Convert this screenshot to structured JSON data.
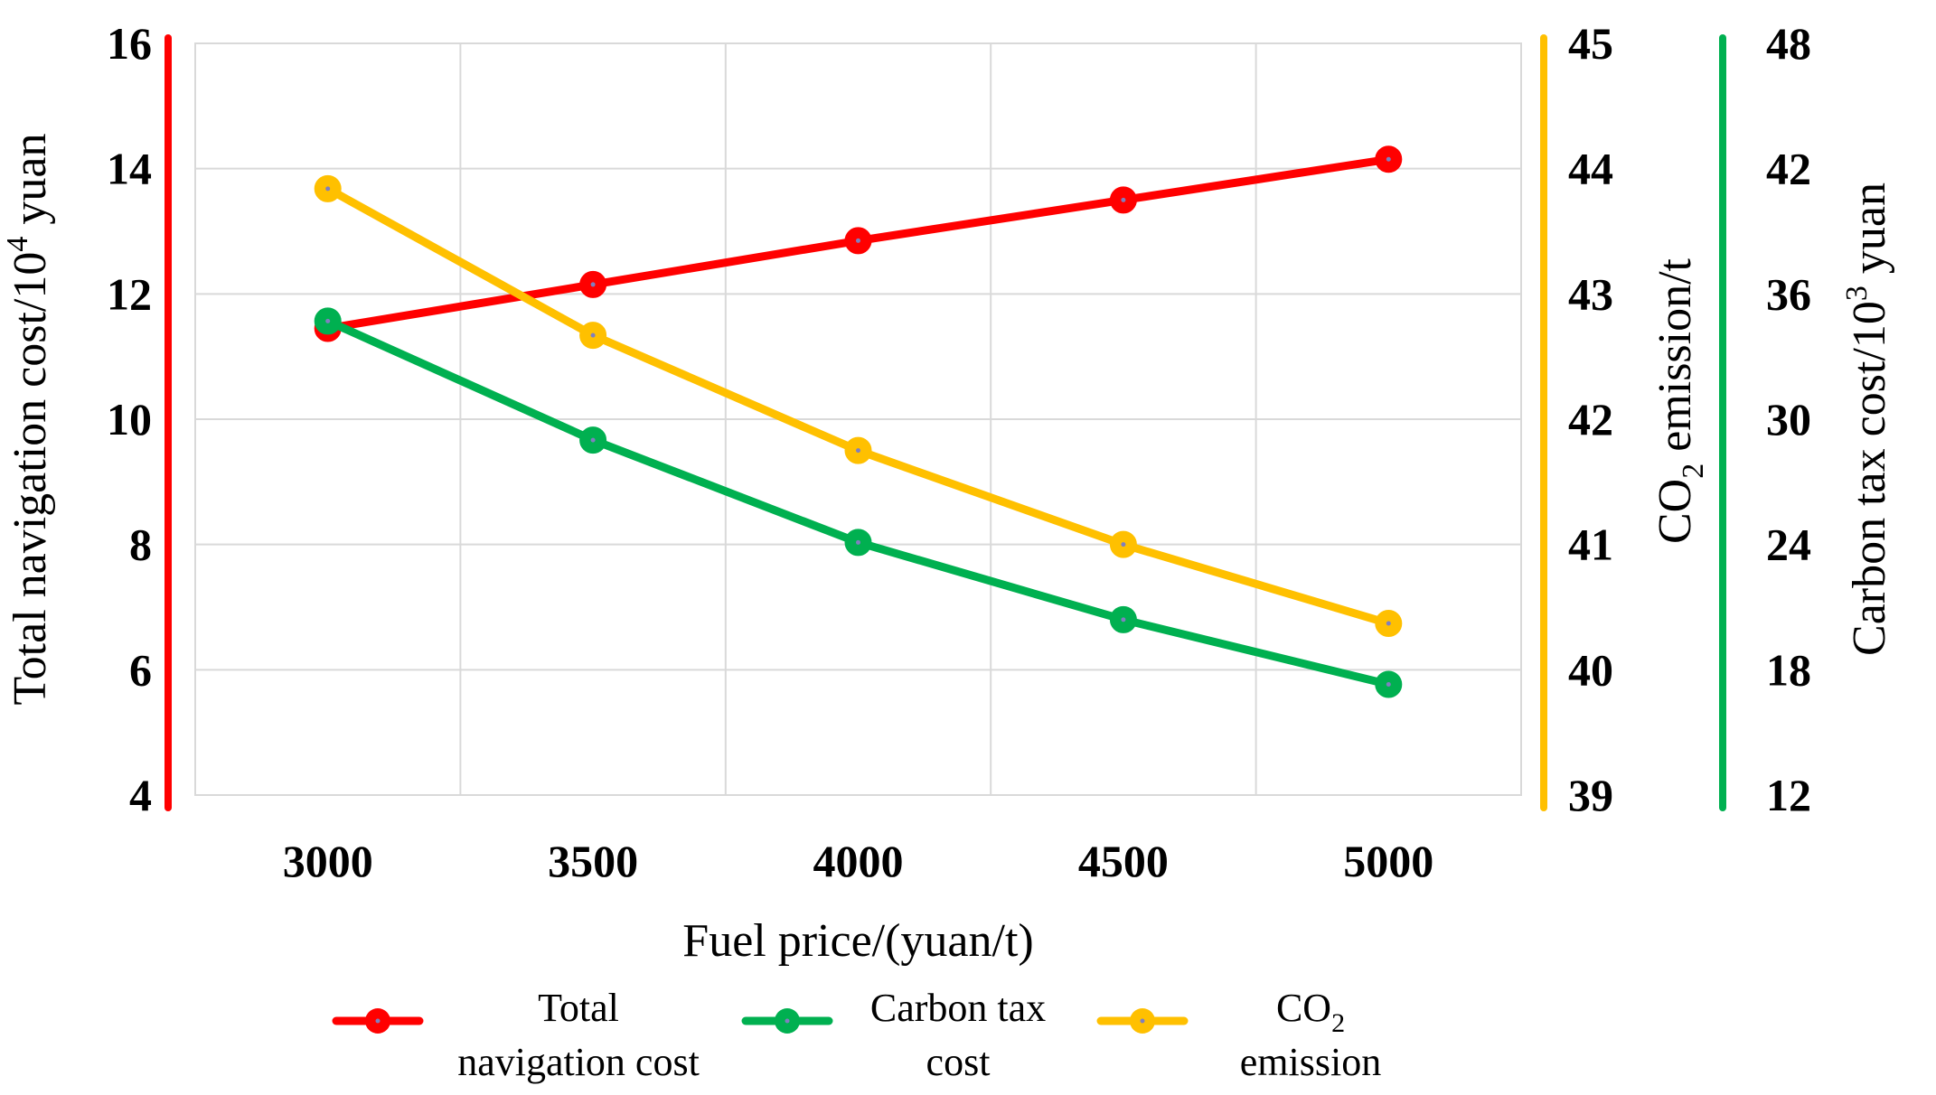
{
  "chart_data": {
    "type": "line",
    "title": "",
    "x": [
      3000,
      3500,
      4000,
      4500,
      5000
    ],
    "xlabel": "Fuel price/(yuan/t)",
    "xlim": [
      2750,
      5250
    ],
    "x_ticks": [
      "3000",
      "3500",
      "4000",
      "4500",
      "5000"
    ],
    "grid": true,
    "axes": [
      {
        "id": "left",
        "position": "left",
        "label": "Total navigation cost/10",
        "label_sup": "4",
        "label_suffix": " yuan",
        "color": "#ff0000",
        "ylim": [
          4,
          16
        ],
        "ticks": [
          "4",
          "6",
          "8",
          "10",
          "12",
          "14",
          "16"
        ]
      },
      {
        "id": "right1",
        "position": "right",
        "label": "CO",
        "label_sub": "2",
        "label_suffix": " emission/t",
        "color": "#ffc000",
        "ylim": [
          39,
          45
        ],
        "ticks": [
          "39",
          "40",
          "41",
          "42",
          "43",
          "44",
          "45"
        ]
      },
      {
        "id": "right2",
        "position": "right-outer",
        "label": "Carbon tax cost/10",
        "label_sup": "3",
        "label_suffix": " yuan",
        "color": "#00b050",
        "ylim": [
          12,
          48
        ],
        "ticks": [
          "12",
          "18",
          "24",
          "30",
          "36",
          "42",
          "48"
        ]
      }
    ],
    "series": [
      {
        "name": "Total navigation cost",
        "axis": "left",
        "color": "#ff0000",
        "values": [
          11.45,
          12.15,
          12.85,
          13.5,
          14.15
        ]
      },
      {
        "name": "Carbon tax cost",
        "axis": "right2",
        "color": "#00b050",
        "values": [
          34.7,
          29.0,
          24.1,
          20.4,
          17.3
        ]
      },
      {
        "name": "CO2 emission",
        "axis": "right1",
        "color": "#ffc000",
        "values": [
          43.84,
          42.67,
          41.75,
          41.0,
          40.37
        ]
      }
    ],
    "legend": {
      "position": "bottom",
      "items": [
        {
          "line1": "Total",
          "line2": "navigation cost",
          "color": "#ff0000"
        },
        {
          "line1": "Carbon tax",
          "line2": "cost",
          "color": "#00b050"
        },
        {
          "line1": "CO",
          "line1_sub": "2",
          "line2": "emission",
          "color": "#ffc000"
        }
      ]
    }
  }
}
